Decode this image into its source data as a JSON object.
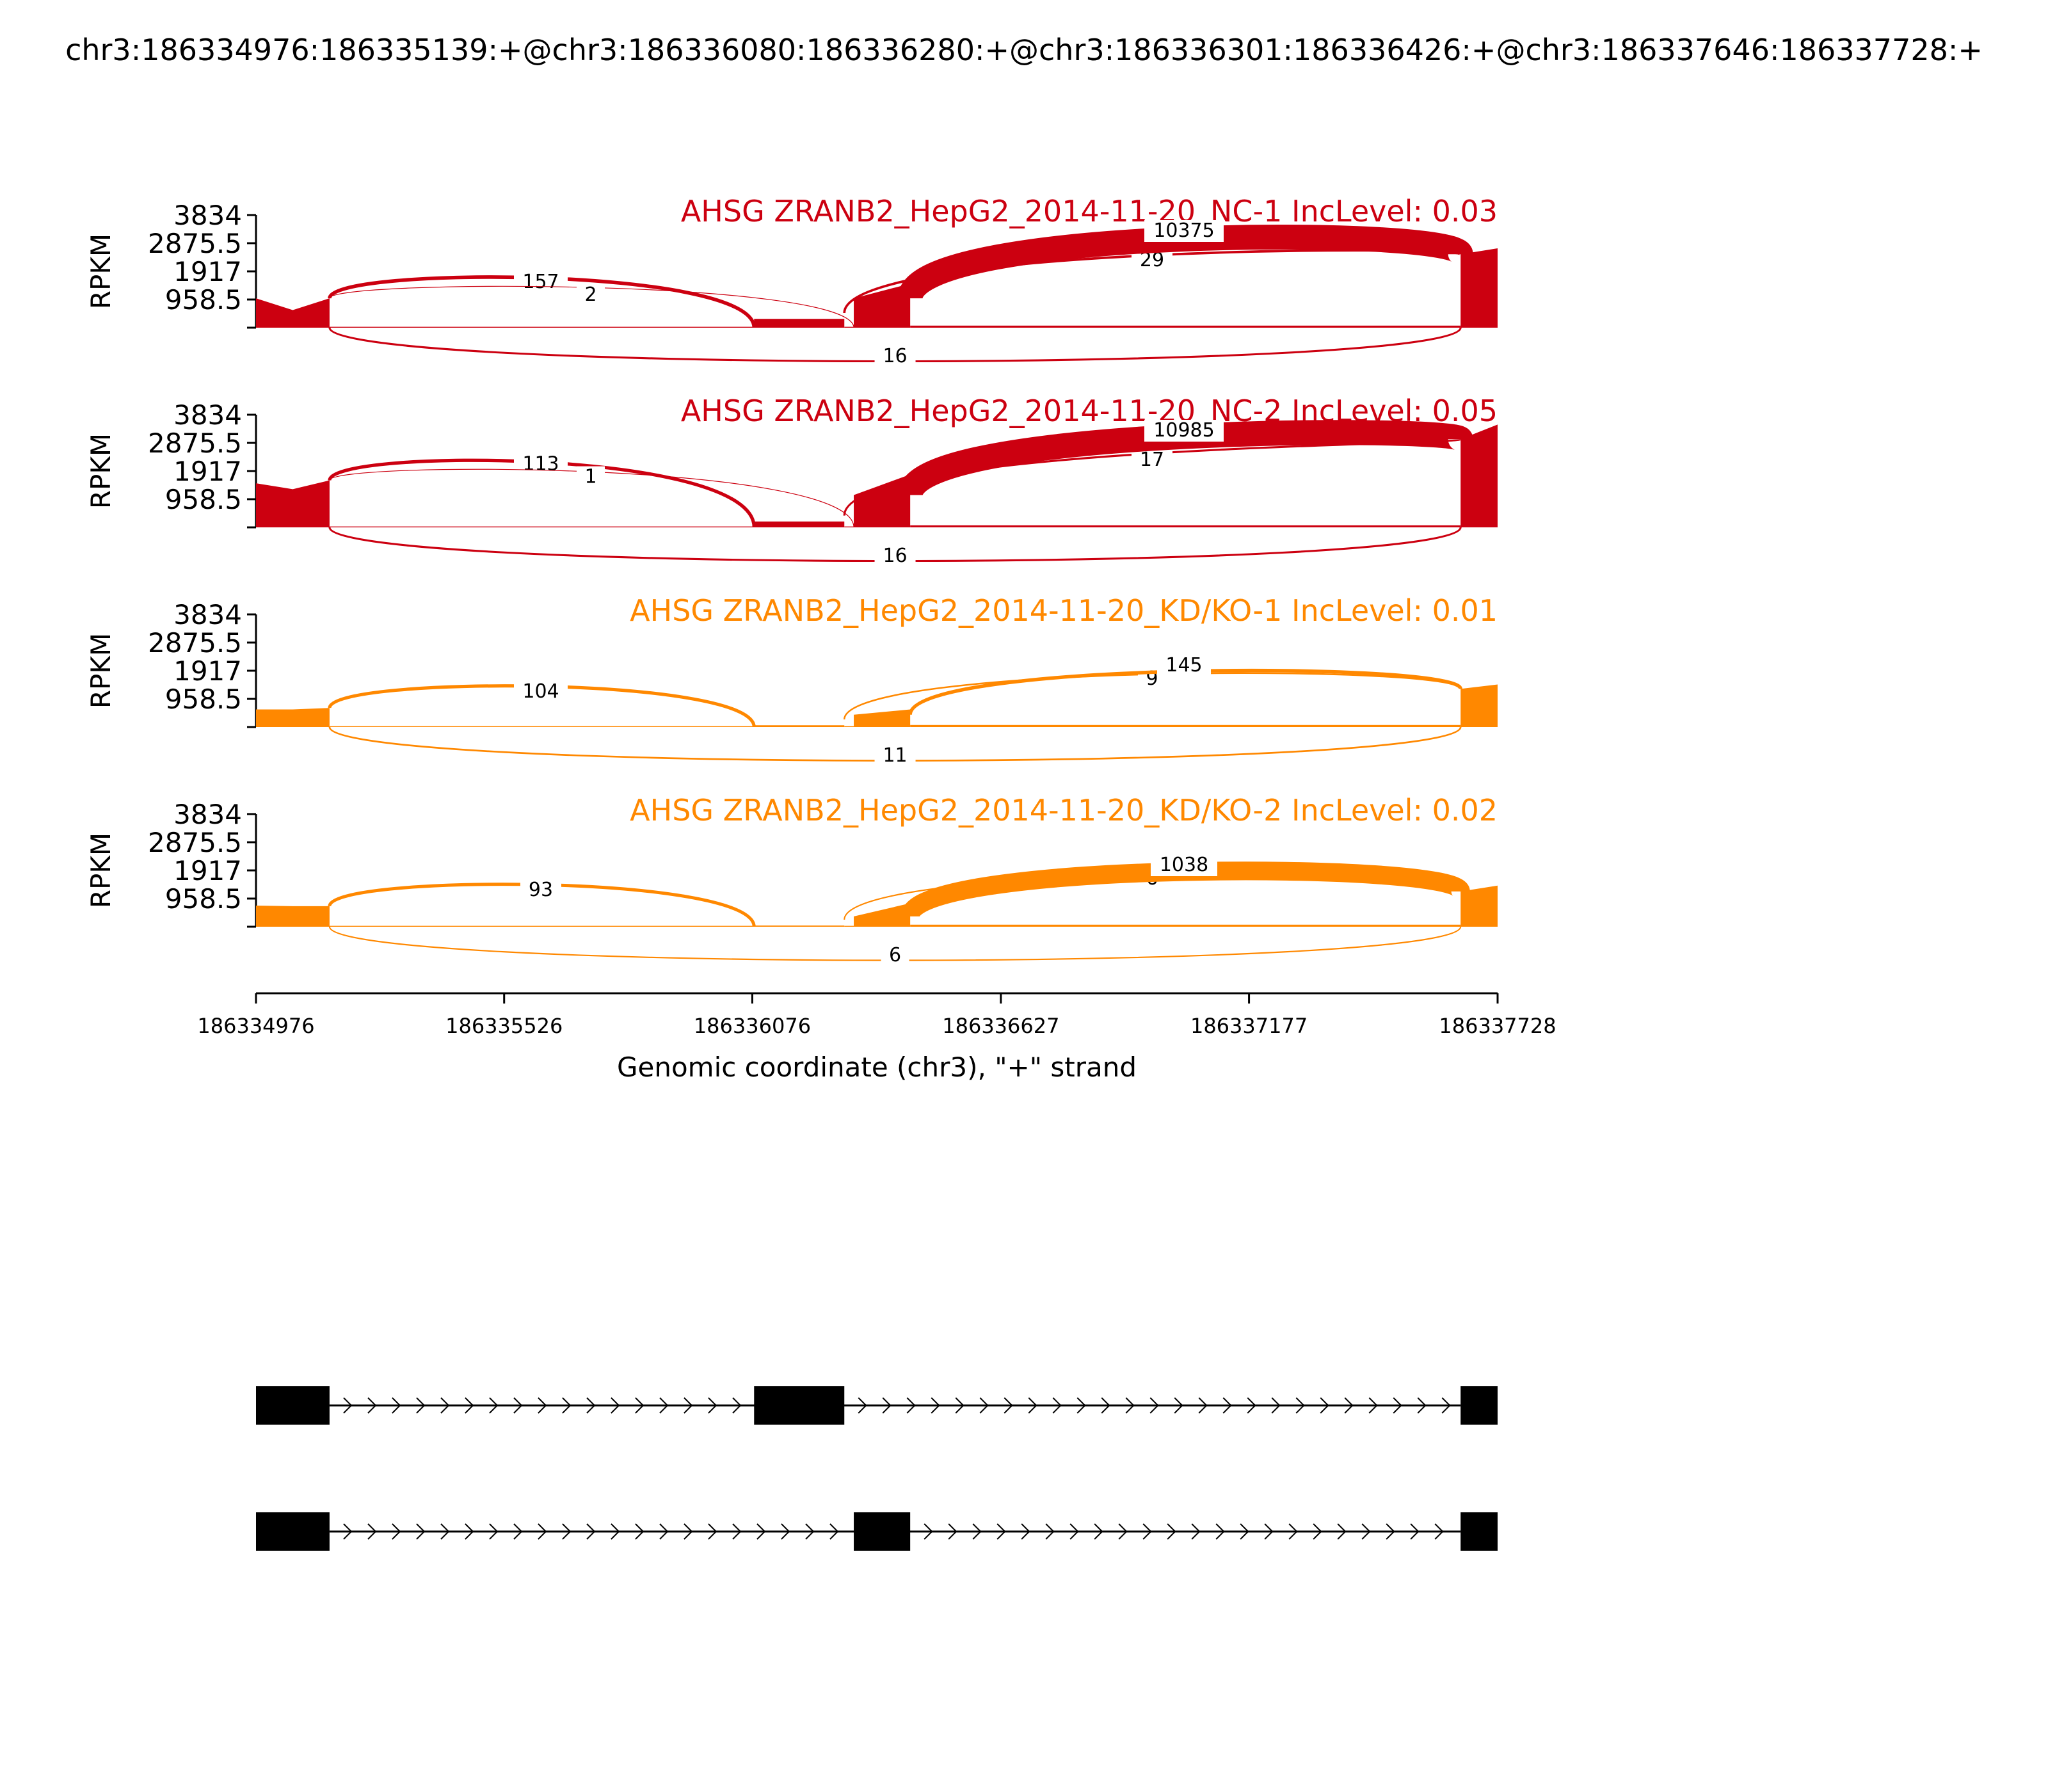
{
  "figure_title": "chr3:186334976:186335139:+@chr3:186336080:186336280:+@chr3:186336301:186336426:+@chr3:186337646:186337728:+",
  "chart_data": {
    "type": "sashimi",
    "x_range": [
      186334976,
      186337728
    ],
    "x_ticks": [
      "186334976",
      "186335526",
      "186336076",
      "186336627",
      "186337177",
      "186337728"
    ],
    "xlabel": "Genomic coordinate (chr3), \"+\" strand",
    "ylabel": "RPKM",
    "y_ticks": [
      "958.5",
      "1917",
      "2875.5",
      "3834"
    ],
    "ylim": [
      0,
      3834
    ],
    "exons": [
      [
        186334976,
        186335139
      ],
      [
        186336080,
        186336280
      ],
      [
        186336301,
        186336426
      ],
      [
        186337646,
        186337728
      ]
    ],
    "colors": {
      "NC": "#cc0010",
      "KD": "#ff8800",
      "model": "#000000"
    },
    "tracks": [
      {
        "label": "AHSG ZRANB2_HepG2_2014-11-20_NC-1 IncLevel: 0.03",
        "group": "NC",
        "coverage": {
          "exon1": [
            1000,
            600,
            1000
          ],
          "intron1": 30,
          "exon2": 300,
          "exon3": [
            1000,
            1500
          ],
          "intron2": 70,
          "exon4": [
            2500,
            2700
          ]
        },
        "junctions": [
          {
            "from": 186335139,
            "to": 186336080,
            "count": "157",
            "side": "above"
          },
          {
            "from": 186335139,
            "to": 186336301,
            "count": "2",
            "side": "above"
          },
          {
            "from": 186336280,
            "to": 186337646,
            "count": "29",
            "side": "above"
          },
          {
            "from": 186336426,
            "to": 186337646,
            "count": "10375",
            "side": "above"
          },
          {
            "from": 186335139,
            "to": 186337646,
            "count": "16",
            "side": "below"
          }
        ]
      },
      {
        "label": "AHSG ZRANB2_HepG2_2014-11-20_NC-2 IncLevel: 0.05",
        "group": "NC",
        "coverage": {
          "exon1": [
            1500,
            1300,
            1600
          ],
          "intron1": 30,
          "exon2": 200,
          "exon3": [
            1100,
            1800
          ],
          "intron2": 70,
          "exon4": [
            3000,
            3500
          ]
        },
        "junctions": [
          {
            "from": 186335139,
            "to": 186336080,
            "count": "113",
            "side": "above"
          },
          {
            "from": 186335139,
            "to": 186336301,
            "count": "1",
            "side": "above"
          },
          {
            "from": 186336280,
            "to": 186337646,
            "count": "17",
            "side": "above"
          },
          {
            "from": 186336426,
            "to": 186337646,
            "count": "10985",
            "side": "above"
          },
          {
            "from": 186335139,
            "to": 186337646,
            "count": "16",
            "side": "below"
          }
        ]
      },
      {
        "label": "AHSG ZRANB2_HepG2_2014-11-20_KD/KO-1 IncLevel: 0.01",
        "group": "KD",
        "coverage": {
          "exon1": [
            600,
            600,
            650
          ],
          "intron1": 30,
          "exon2": 60,
          "exon3": [
            420,
            600
          ],
          "intron2": 70,
          "exon4": [
            1300,
            1450
          ]
        },
        "junctions": [
          {
            "from": 186335139,
            "to": 186336080,
            "count": "104",
            "side": "above"
          },
          {
            "from": 186336280,
            "to": 186337646,
            "count": "9",
            "side": "above"
          },
          {
            "from": 186336426,
            "to": 186337646,
            "count": "145",
            "side": "above"
          },
          {
            "from": 186335139,
            "to": 186337646,
            "count": "11",
            "side": "below"
          }
        ]
      },
      {
        "label": "AHSG ZRANB2_HepG2_2014-11-20_KD/KO-2 IncLevel: 0.02",
        "group": "KD",
        "coverage": {
          "exon1": [
            720,
            700,
            700
          ],
          "intron1": 30,
          "exon2": 40,
          "exon3": [
            350,
            800
          ],
          "intron2": 70,
          "exon4": [
            1200,
            1400
          ]
        },
        "junctions": [
          {
            "from": 186335139,
            "to": 186336080,
            "count": "93",
            "side": "above"
          },
          {
            "from": 186336280,
            "to": 186337646,
            "count": "6",
            "side": "above"
          },
          {
            "from": 186336426,
            "to": 186337646,
            "count": "1038",
            "side": "above"
          },
          {
            "from": 186335139,
            "to": 186337646,
            "count": "6",
            "side": "below"
          }
        ]
      }
    ],
    "isoforms": [
      {
        "exons": [
          [
            186334976,
            186335139
          ],
          [
            186336080,
            186336280
          ],
          [
            186337646,
            186337728
          ]
        ]
      },
      {
        "exons": [
          [
            186334976,
            186335139
          ],
          [
            186336301,
            186336426
          ],
          [
            186337646,
            186337728
          ]
        ]
      }
    ]
  }
}
